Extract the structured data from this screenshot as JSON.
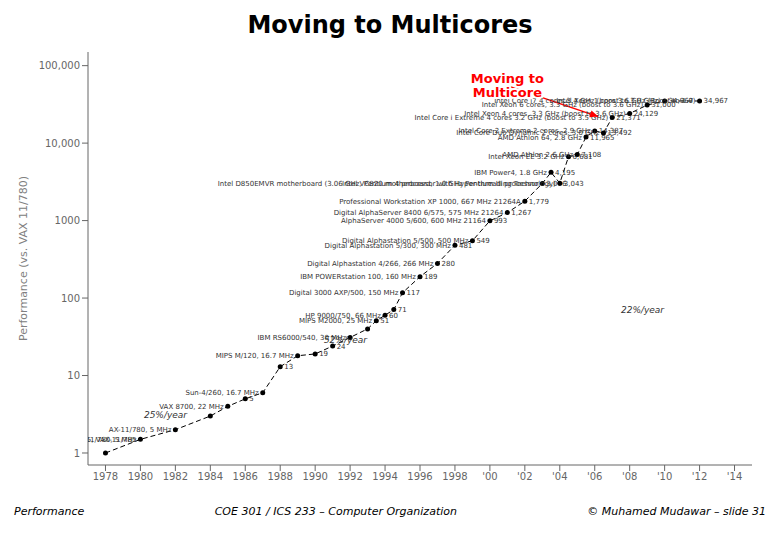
{
  "chart_data": {
    "type": "line",
    "title": "Moving to Multicores",
    "ylabel": "Performance (vs. VAX 11/780)",
    "log": "y",
    "color": "#000000",
    "marker": "o",
    "line_style": "dashed",
    "data_labels": true,
    "xlim": [
      1977,
      2015
    ],
    "ylim": [
      0.7,
      150000
    ],
    "xticks": [
      1978,
      1980,
      1982,
      1984,
      1986,
      1988,
      1990,
      1992,
      1994,
      1996,
      1998,
      {
        "value": 2000,
        "label": "'00"
      },
      {
        "value": 2002,
        "label": "'02"
      },
      {
        "value": 2004,
        "label": "'04"
      },
      {
        "value": 2006,
        "label": "'06"
      },
      {
        "value": 2008,
        "label": "'08"
      },
      {
        "value": 2010,
        "label": "'10"
      },
      {
        "value": 2012,
        "label": "'12"
      },
      {
        "value": 2014,
        "label": "'14"
      }
    ],
    "yticks": [
      1,
      10,
      100,
      1000,
      {
        "value": 10000,
        "label": "10,000"
      },
      {
        "value": 100000,
        "label": "100,000"
      }
    ],
    "x": [
      1978,
      1980,
      1982,
      1984,
      1985,
      1986,
      1987,
      1988,
      1989,
      1990,
      1991,
      1992,
      1993,
      1993.5,
      1994,
      1994.5,
      1995,
      1996,
      1997,
      1998,
      1999,
      2000,
      2001,
      2002,
      2003,
      2003.5,
      2004,
      2004.5,
      2005,
      2005.5,
      2006,
      2006.5,
      2007,
      2008,
      2009,
      2010,
      2012
    ],
    "values": [
      1,
      1.5,
      2,
      3,
      4,
      5,
      6,
      13,
      18,
      19,
      24,
      31,
      40,
      51,
      60,
      71,
      117,
      189,
      280,
      481,
      549,
      993,
      1267,
      1779,
      3016,
      4195,
      3043,
      6681,
      7108,
      11965,
      14387,
      13492,
      21371,
      24129,
      31000,
      34967,
      34967
    ],
    "value_labels": [
      null,
      null,
      null,
      null,
      null,
      "5",
      null,
      "13",
      null,
      "19",
      "24",
      null,
      null,
      "51",
      "60",
      "71",
      "117",
      "189",
      "280",
      "481",
      "549",
      "993",
      "1,267",
      "1,779",
      "3,016",
      "4,195",
      "3,043",
      "6,681",
      "7,108",
      "11,965",
      "14,387",
      "13,492",
      "21,371",
      "24,129",
      "31,000",
      "34,967",
      "34,967"
    ],
    "annotations": [
      {
        "text": "AX-11/780, 5 MHz",
        "x": 1980,
        "y": 1.5
      },
      {
        "text": "VAX 8700, 22 MHz",
        "x": 1985,
        "y": 4
      },
      {
        "text": "Sun-4/260, 16.7 MHz",
        "x": 1987,
        "y": 6
      },
      {
        "text": "MIPS M/120, 16.7 MHz",
        "x": 1989,
        "y": 18
      },
      {
        "text": "IBM RS6000/540, 30 MHz",
        "x": 1992,
        "y": 31
      },
      {
        "text": "MIPS M2000, 25 MHz",
        "x": 1993.5,
        "y": 51
      },
      {
        "text": "HP 9000/750, 66 MHz",
        "x": 1994,
        "y": 60
      },
      {
        "text": "Digital 3000 AXP/500, 150 MHz",
        "x": 1995,
        "y": 117
      },
      {
        "text": "IBM POWERstation 100, 160 MHz",
        "x": 1996,
        "y": 189
      },
      {
        "text": "Digital Alphastation 4/266, 266 MHz",
        "x": 1997,
        "y": 280
      },
      {
        "text": "Digital Alphastation 5/300, 300 MHz",
        "x": 1998,
        "y": 481
      },
      {
        "text": "Digital Alphastation 5/500, 500 MHz",
        "x": 1999,
        "y": 549
      },
      {
        "text": "AlphaServer 4000 5/600, 600 MHz 21164",
        "x": 2000,
        "y": 993
      },
      {
        "text": "Digital AlphaServer 8400 6/575, 575 MHz 21264",
        "x": 2001,
        "y": 1267
      },
      {
        "text": "Professional Workstation XP 1000, 667 MHz 21264A",
        "x": 2002,
        "y": 1779
      },
      {
        "text": "Intel VC820 motherboard, 1.0 GHz Pentium III processor",
        "x": 2003,
        "y": 3016
      },
      {
        "text": "IBM Power4, 1.8 GHz",
        "x": 2003.5,
        "y": 4195
      },
      {
        "text": "Intel D850EMVR motherboard (3.06 GHz, Pentium 4 processor with Hyper-threading Technology)",
        "x": 2004,
        "y": 3043
      },
      {
        "text": "Intel Xeon EE 3.2 GHz",
        "x": 2004.5,
        "y": 6681
      },
      {
        "text": "AMD Athlon 2.6 GHz",
        "x": 2005,
        "y": 7108
      },
      {
        "text": "AMD Athlon 64, 2.8 GHz",
        "x": 2005.5,
        "y": 11965
      },
      {
        "text": "Intel Core 2 Extreme 2 cores, 2.9 GHz",
        "x": 2006,
        "y": 14387
      },
      {
        "text": "Intel Core Duo Dynamic 2 cores, 3.0 GHz",
        "x": 2006.5,
        "y": 13492
      },
      {
        "text": "Intel Core i Extreme 4 cores 3.2 GHz (boost to 3.5 GHz)",
        "x": 2007,
        "y": 21371
      },
      {
        "text": "Intel Xeon 4 cores, 3.3 GHz (boost to 3.6 GHz)",
        "x": 2008,
        "y": 24129
      },
      {
        "text": "Intel Xeon 6 cores, 3.3 GHz (boost to 3.6 GHz)",
        "x": 2009,
        "y": 31000
      },
      {
        "text": "Intel Core i7 4 cores 3.4 GHz (boost to 3.0 GHz)",
        "x": 2010,
        "y": 34967
      },
      {
        "text": "Intel Xeon 1 core 3.6 GHz (Boost to 1.0)",
        "x": 2012,
        "y": 34967
      },
      {
        "text": "1.5, VAX-11/785",
        "x": 1980,
        "y": 1.5
      },
      {
        "text": "AX-11/780, 5 MHz",
        "x": 1982,
        "y": 2
      }
    ],
    "trend_labels": [
      {
        "text": "52%/year",
        "x": 1990.5,
        "y": 26
      },
      {
        "text": "22%/year",
        "x": 2007.5,
        "y": 65
      },
      {
        "text": "25%/year",
        "x": 1980.2,
        "y": 2.8
      }
    ],
    "callout": {
      "text": "Moving to\nMulticore",
      "x": 2001.0,
      "y": 55000,
      "arrow_x": 2006.2,
      "arrow_y": 22000,
      "color": "#ff0000"
    },
    "footer": [
      "Performance",
      "COE 301 / ICS 233 – Computer Organization",
      "© Muhamed Mudawar – slide 31"
    ]
  }
}
